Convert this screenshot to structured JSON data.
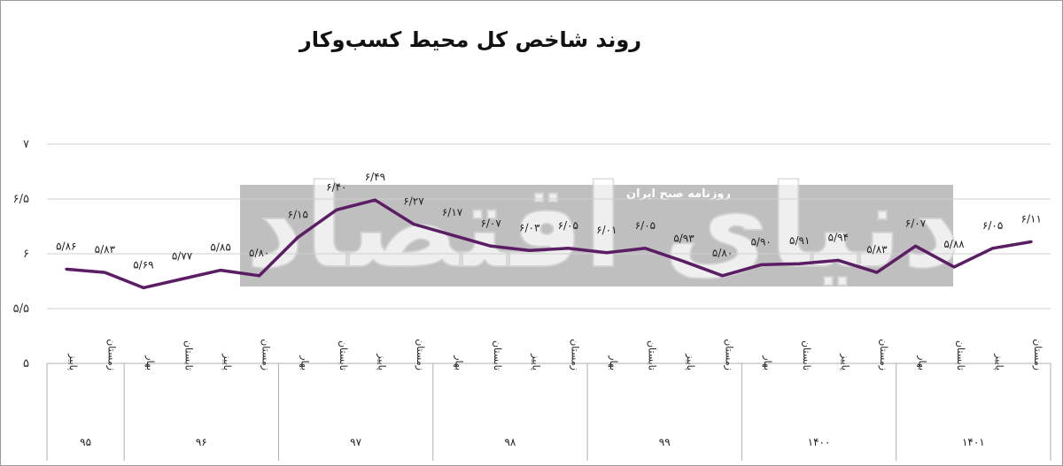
{
  "chart_data": {
    "type": "line",
    "title": "روند شاخص کل محیط کسب‌وکار",
    "ylim": [
      5,
      7
    ],
    "yticks": [
      {
        "value": 7,
        "label": "۷"
      },
      {
        "value": 6.5,
        "label": "۶/۵"
      },
      {
        "value": 6,
        "label": "۶"
      },
      {
        "value": 5.5,
        "label": "۵/۵"
      },
      {
        "value": 5,
        "label": "۵"
      }
    ],
    "grid": true,
    "series_color": "#5b1d63",
    "groups": [
      {
        "year": "۹۵",
        "seasons": [
          "پاییز",
          "زمستان"
        ]
      },
      {
        "year": "۹۶",
        "seasons": [
          "بهار",
          "تابستان",
          "پاییز",
          "زمستان"
        ]
      },
      {
        "year": "۹۷",
        "seasons": [
          "بهار",
          "تابستان",
          "پاییز",
          "زمستان"
        ]
      },
      {
        "year": "۹۸",
        "seasons": [
          "بهار",
          "تابستان",
          "پاییز",
          "زمستان"
        ]
      },
      {
        "year": "۹۹",
        "seasons": [
          "بهار",
          "تابستان",
          "پاییز",
          "زمستان"
        ]
      },
      {
        "year": "۱۴۰۰",
        "seasons": [
          "بهار",
          "تابستان",
          "پاییز",
          "زمستان"
        ]
      },
      {
        "year": "۱۴۰۱",
        "seasons": [
          "بهار",
          "تابستان",
          "پاییز",
          "زمستان"
        ]
      }
    ],
    "values": [
      5.86,
      5.83,
      5.69,
      5.77,
      5.85,
      5.8,
      6.15,
      6.4,
      6.49,
      6.27,
      6.17,
      6.07,
      6.03,
      6.05,
      6.01,
      6.05,
      5.93,
      5.8,
      5.9,
      5.91,
      5.94,
      5.83,
      6.07,
      5.88,
      6.05,
      6.11
    ],
    "data_labels": [
      "۵/۸۶",
      "۵/۸۳",
      "۵/۶۹",
      "۵/۷۷",
      "۵/۸۵",
      "۵/۸۰",
      "۶/۱۵",
      "۶/۴۰",
      "۶/۴۹",
      "۶/۲۷",
      "۶/۱۷",
      "۶/۰۷",
      "۶/۰۳",
      "۶/۰۵",
      "۶/۰۱",
      "۶/۰۵",
      "۵/۹۳",
      "۵/۸۰",
      "۵/۹۰",
      "۵/۹۱",
      "۵/۹۴",
      "۵/۸۳",
      "۶/۰۷",
      "۵/۸۸",
      "۶/۰۵",
      "۶/۱۱"
    ]
  },
  "watermark": {
    "box_text": "روزنامه صبح ایران",
    "logo_text": "دنیای اقتصاد"
  }
}
